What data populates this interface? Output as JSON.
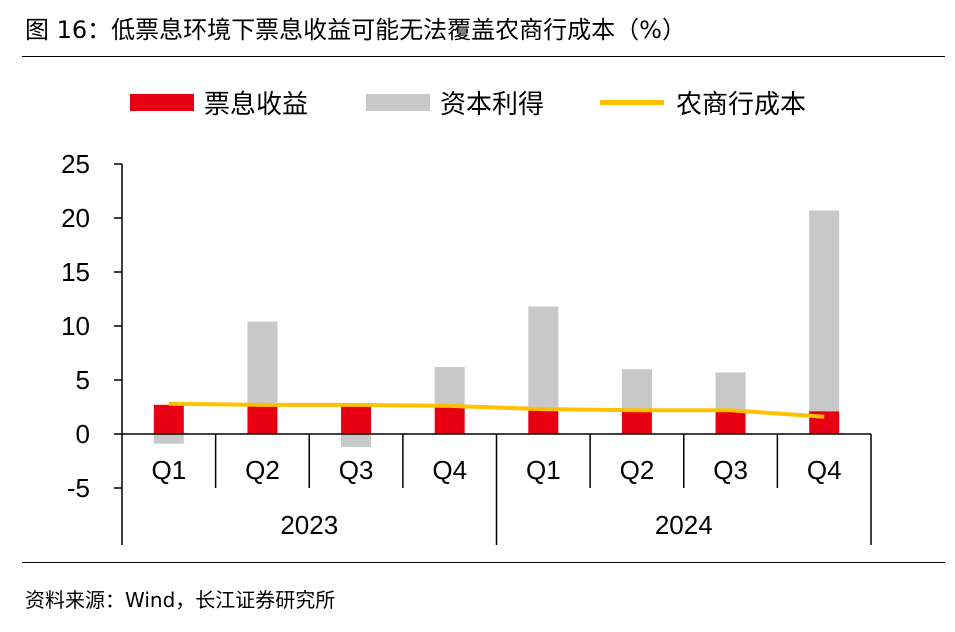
{
  "title": "图 16：低票息环境下票息收益可能无法覆盖农商行成本（%）",
  "source": "资料来源：Wind，长江证券研究所",
  "colors": {
    "coupon": "#e60012",
    "capital": "#c8c8c8",
    "cost": "#ffc000"
  },
  "chart_data": {
    "type": "bar",
    "categories": [
      "Q1",
      "Q2",
      "Q3",
      "Q4",
      "Q1",
      "Q2",
      "Q3",
      "Q4"
    ],
    "groups": [
      {
        "label": "2023",
        "span": 4
      },
      {
        "label": "2024",
        "span": 4
      }
    ],
    "series": [
      {
        "name": "票息收益",
        "kind": "bar",
        "stacked": true,
        "values": [
          2.7,
          2.6,
          2.6,
          2.5,
          2.4,
          2.3,
          2.2,
          2.1
        ]
      },
      {
        "name": "资本利得",
        "kind": "bar",
        "stacked": true,
        "values": [
          -0.9,
          7.8,
          -1.2,
          3.7,
          9.4,
          3.7,
          3.5,
          18.6
        ]
      },
      {
        "name": "农商行成本",
        "kind": "line",
        "values": [
          2.8,
          2.7,
          2.7,
          2.6,
          2.3,
          2.2,
          2.2,
          1.6
        ]
      }
    ],
    "yticks": [
      25,
      20,
      15,
      10,
      5,
      0,
      -5
    ],
    "ylim": [
      -5,
      25
    ],
    "legend_position": "top",
    "grid": false
  }
}
